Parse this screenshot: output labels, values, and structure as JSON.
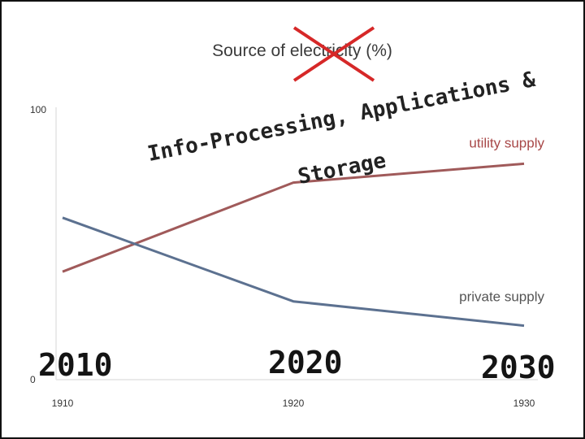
{
  "chart_data": {
    "type": "line",
    "title": "Source of electricity (%)",
    "xlabel": "",
    "ylabel": "",
    "x": [
      1910,
      1920,
      1930
    ],
    "x_tick_labels": [
      "1910",
      "1920",
      "1930"
    ],
    "ylim": [
      0,
      100
    ],
    "y_tick_labels": [
      "0",
      "100"
    ],
    "series": [
      {
        "name": "utility supply",
        "values": [
          40,
          73,
          80
        ],
        "color": "#a05a5a"
      },
      {
        "name": "private supply",
        "values": [
          60,
          29,
          20
        ],
        "color": "#5c7190"
      }
    ],
    "grid": false,
    "legend": "inline labels"
  },
  "overlay": {
    "headline_line1": "Info-Processing, Applications &",
    "headline_line2": "Storage",
    "years": [
      "2010",
      "2020",
      "2030"
    ],
    "cross_color": "#d62828"
  }
}
